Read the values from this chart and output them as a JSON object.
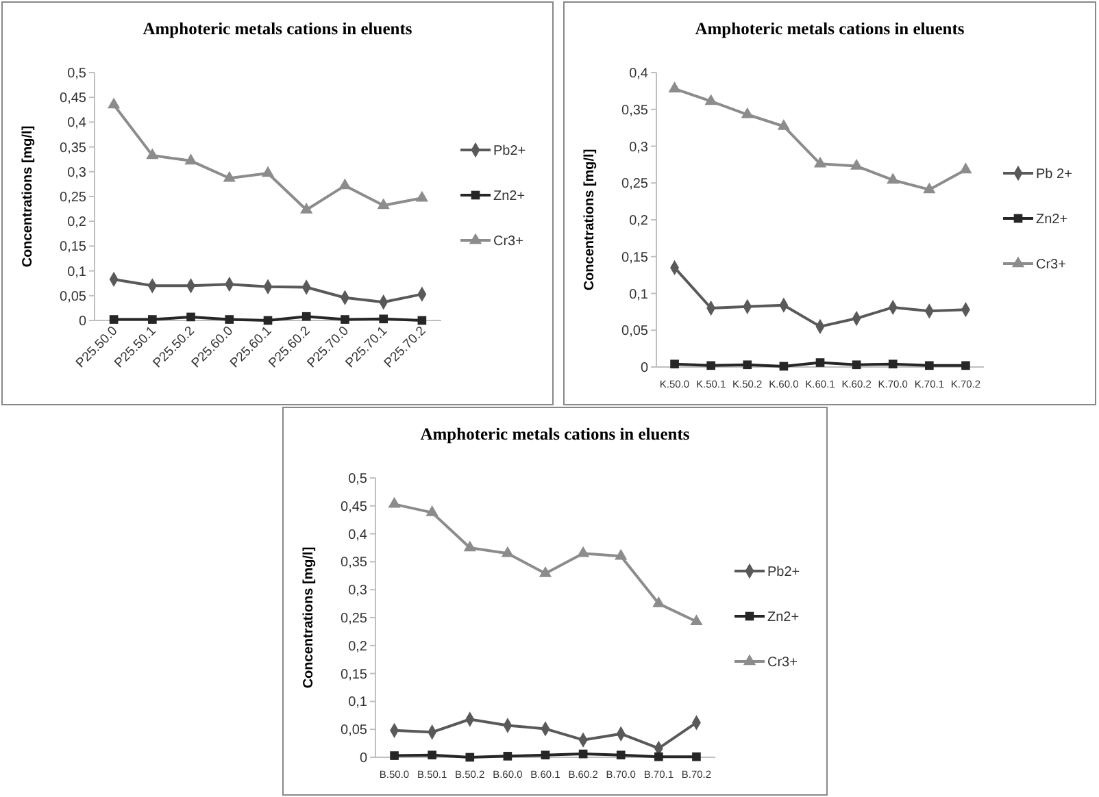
{
  "chart_data": [
    {
      "type": "line",
      "title": "Amphoteric metals cations in eluents",
      "ylabel": "Concentrations [mg/l]",
      "categories": [
        "P25.50.0",
        "P25.50.1",
        "P25.50.2",
        "P25.60.0",
        "P25.60.1",
        "P25.60.2",
        "P25.70.0",
        "P25.70.1",
        "P25.70.2"
      ],
      "ylim": [
        0,
        0.5
      ],
      "yticks": [
        {
          "value": 0,
          "label": "0"
        },
        {
          "value": 0.05,
          "label": "0,05"
        },
        {
          "value": 0.1,
          "label": "0,1"
        },
        {
          "value": 0.15,
          "label": "0,15"
        },
        {
          "value": 0.2,
          "label": "0,2"
        },
        {
          "value": 0.25,
          "label": "0,25"
        },
        {
          "value": 0.3,
          "label": "0,3"
        },
        {
          "value": 0.35,
          "label": "0,35"
        },
        {
          "value": 0.4,
          "label": "0,4"
        },
        {
          "value": 0.45,
          "label": "0,45"
        },
        {
          "value": 0.5,
          "label": "0,5"
        }
      ],
      "grid": false,
      "legend": "right",
      "line_style": "solid",
      "series": [
        {
          "name": "Pb2+",
          "color": "#595959",
          "marker": "diamond",
          "values": [
            0.083,
            0.07,
            0.07,
            0.073,
            0.068,
            0.067,
            0.046,
            0.037,
            0.053
          ]
        },
        {
          "name": "Zn2+",
          "color": "#262626",
          "marker": "square",
          "values": [
            0.002,
            0.002,
            0.007,
            0.002,
            0,
            0.008,
            0.002,
            0.003,
            0
          ]
        },
        {
          "name": "Cr3+",
          "color": "#8c8c8c",
          "marker": "triangle",
          "values": [
            0.435,
            0.333,
            0.322,
            0.287,
            0.297,
            0.223,
            0.272,
            0.232,
            0.247
          ]
        }
      ]
    },
    {
      "type": "line",
      "title": "Amphoteric metals cations in eluents",
      "ylabel": "Concentrations [mg/l]",
      "categories": [
        "K.50.0",
        "K.50.1",
        "K.50.2",
        "K.60.0",
        "K.60.1",
        "K.60.2",
        "K.70.0",
        "K.70.1",
        "K.70.2"
      ],
      "ylim": [
        0,
        0.4
      ],
      "yticks": [
        {
          "value": 0,
          "label": "0"
        },
        {
          "value": 0.05,
          "label": "0,05"
        },
        {
          "value": 0.1,
          "label": "0,1"
        },
        {
          "value": 0.15,
          "label": "0,15"
        },
        {
          "value": 0.2,
          "label": "0,2"
        },
        {
          "value": 0.25,
          "label": "0,25"
        },
        {
          "value": 0.3,
          "label": "0,3"
        },
        {
          "value": 0.35,
          "label": "0,35"
        },
        {
          "value": 0.4,
          "label": "0,4"
        }
      ],
      "grid": false,
      "legend": "right",
      "line_style": "solid",
      "series": [
        {
          "name": "Pb 2+",
          "color": "#595959",
          "marker": "diamond",
          "values": [
            0.135,
            0.08,
            0.082,
            0.084,
            0.055,
            0.066,
            0.081,
            0.076,
            0.078
          ]
        },
        {
          "name": "Zn2+",
          "color": "#262626",
          "marker": "square",
          "values": [
            0.004,
            0.002,
            0.003,
            0.001,
            0.006,
            0.003,
            0.004,
            0.002,
            0.002
          ]
        },
        {
          "name": "Cr3+",
          "color": "#8c8c8c",
          "marker": "triangle",
          "values": [
            0.378,
            0.361,
            0.343,
            0.327,
            0.276,
            0.273,
            0.254,
            0.241,
            0.268
          ]
        }
      ]
    },
    {
      "type": "line",
      "title": "Amphoteric metals cations in eluents",
      "ylabel": "Concentrations [mg/l]",
      "categories": [
        "B.50.0",
        "B.50.1",
        "B.50.2",
        "B.60.0",
        "B.60.1",
        "B.60.2",
        "B.70.0",
        "B.70.1",
        "B.70.2"
      ],
      "ylim": [
        0,
        0.5
      ],
      "yticks": [
        {
          "value": 0,
          "label": "0"
        },
        {
          "value": 0.05,
          "label": "0,05"
        },
        {
          "value": 0.1,
          "label": "0,1"
        },
        {
          "value": 0.15,
          "label": "0,15"
        },
        {
          "value": 0.2,
          "label": "0,2"
        },
        {
          "value": 0.25,
          "label": "0,25"
        },
        {
          "value": 0.3,
          "label": "0,3"
        },
        {
          "value": 0.35,
          "label": "0,35"
        },
        {
          "value": 0.4,
          "label": "0,4"
        },
        {
          "value": 0.45,
          "label": "0,45"
        },
        {
          "value": 0.5,
          "label": "0,5"
        }
      ],
      "grid": false,
      "legend": "right",
      "line_style": "solid",
      "series": [
        {
          "name": "Pb2+",
          "color": "#595959",
          "marker": "diamond",
          "values": [
            0.048,
            0.045,
            0.068,
            0.057,
            0.051,
            0.031,
            0.042,
            0.016,
            0.062
          ]
        },
        {
          "name": "Zn2+",
          "color": "#262626",
          "marker": "square",
          "values": [
            0.003,
            0.004,
            0,
            0.002,
            0.004,
            0.006,
            0.004,
            0.001,
            0.001
          ]
        },
        {
          "name": "Cr3+",
          "color": "#8c8c8c",
          "marker": "triangle",
          "values": [
            0.453,
            0.438,
            0.375,
            0.365,
            0.329,
            0.365,
            0.36,
            0.275,
            0.243
          ]
        }
      ]
    }
  ]
}
